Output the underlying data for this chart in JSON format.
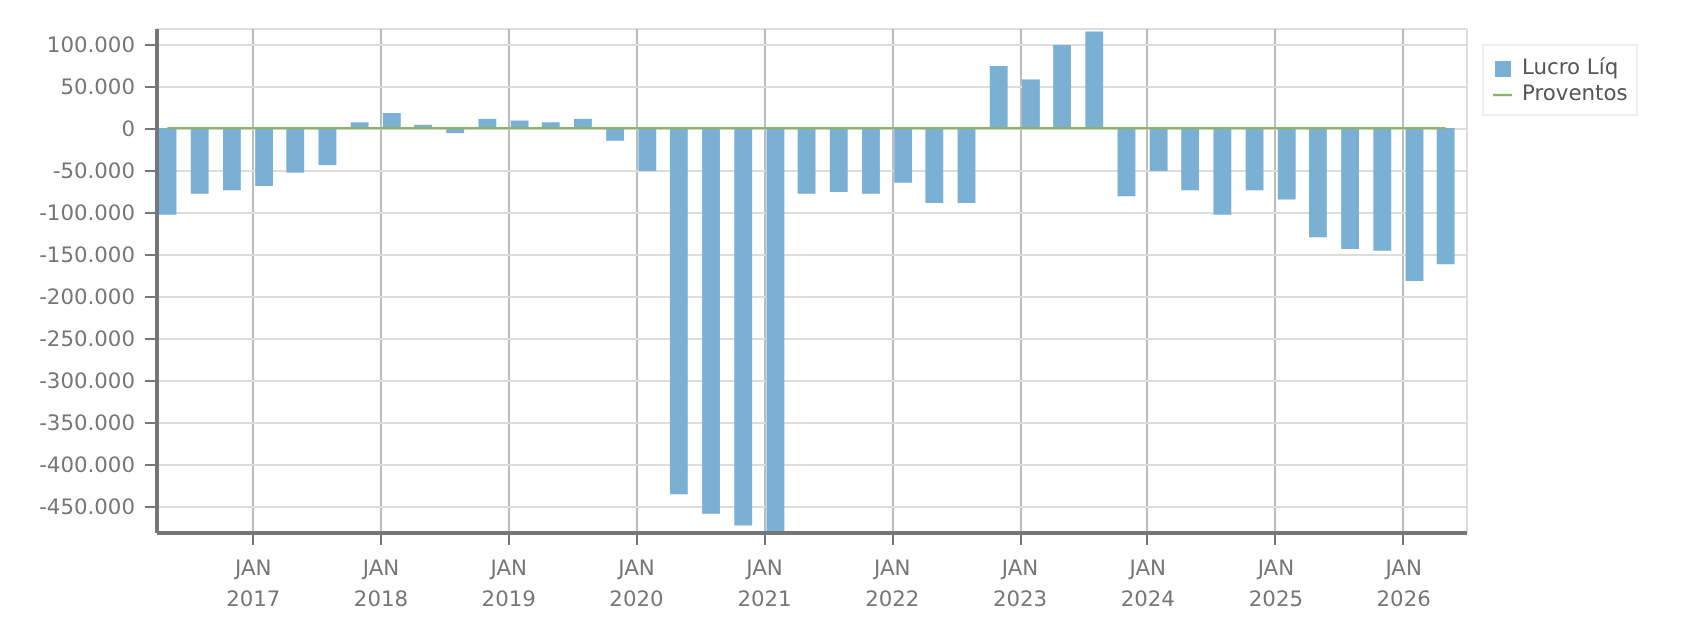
{
  "chart_data": {
    "type": "bar",
    "x": [
      "2016-05",
      "2016-08",
      "2016-11",
      "2017-02",
      "2017-05",
      "2017-08",
      "2017-11",
      "2018-02",
      "2018-05",
      "2018-08",
      "2018-11",
      "2019-02",
      "2019-05",
      "2019-08",
      "2019-11",
      "2020-02",
      "2020-05",
      "2020-08",
      "2020-11",
      "2021-02",
      "2021-05",
      "2021-08",
      "2021-11",
      "2022-02",
      "2022-05",
      "2022-08",
      "2022-11",
      "2023-02",
      "2023-05",
      "2023-08",
      "2023-11",
      "2024-02",
      "2024-05",
      "2024-08",
      "2024-11",
      "2025-02",
      "2025-05",
      "2025-08",
      "2025-11",
      "2026-02",
      "2026-05"
    ],
    "series": [
      {
        "name": "Lucro Líq",
        "color": "#7ab0d4",
        "values": [
          -103000,
          -78000,
          -74000,
          -69000,
          -53000,
          -44000,
          7000,
          18000,
          4000,
          -6000,
          11000,
          9000,
          7000,
          11000,
          -15000,
          -51000,
          -436000,
          -459000,
          -473000,
          -481000,
          -78000,
          -76000,
          -78000,
          -65000,
          -89000,
          -89000,
          74000,
          58000,
          99000,
          115000,
          -81000,
          -51000,
          -74000,
          -103000,
          -74000,
          -85000,
          -130000,
          -144000,
          -146000,
          -182000,
          -162000
        ]
      },
      {
        "name": "Proventos",
        "color": "#8db36a",
        "type": "line",
        "values": [
          0,
          0,
          0,
          0,
          0,
          0,
          0,
          0,
          0,
          0,
          0,
          0,
          0,
          0,
          0,
          0,
          0,
          0,
          0,
          0,
          0,
          0,
          0,
          0,
          0,
          0,
          0,
          0,
          0,
          0,
          0,
          0,
          0,
          0,
          0,
          0,
          0,
          0,
          0,
          0,
          0
        ]
      }
    ],
    "xlim": [
      "2016-04",
      "2026-07"
    ],
    "xticks": [
      {
        "value": "2017-01",
        "label": "JAN\n2017"
      },
      {
        "value": "2018-01",
        "label": "JAN\n2018"
      },
      {
        "value": "2019-01",
        "label": "JAN\n2019"
      },
      {
        "value": "2020-01",
        "label": "JAN\n2020"
      },
      {
        "value": "2021-01",
        "label": "JAN\n2021"
      },
      {
        "value": "2022-01",
        "label": "JAN\n2022"
      },
      {
        "value": "2023-01",
        "label": "JAN\n2023"
      },
      {
        "value": "2024-01",
        "label": "JAN\n2024"
      },
      {
        "value": "2025-01",
        "label": "JAN\n2025"
      },
      {
        "value": "2026-01",
        "label": "JAN\n2026"
      }
    ],
    "ylim": [
      -482000,
      118000
    ],
    "yticks": [
      {
        "value": 100000,
        "label": "100.000"
      },
      {
        "value": 50000,
        "label": "50.000"
      },
      {
        "value": 0,
        "label": "0"
      },
      {
        "value": -50000,
        "label": "-50.000"
      },
      {
        "value": -100000,
        "label": "-100.000"
      },
      {
        "value": -150000,
        "label": "-150.000"
      },
      {
        "value": -200000,
        "label": "-200.000"
      },
      {
        "value": -250000,
        "label": "-250.000"
      },
      {
        "value": -300000,
        "label": "-300.000"
      },
      {
        "value": -350000,
        "label": "-350.000"
      },
      {
        "value": -400000,
        "label": "-400.000"
      },
      {
        "value": -450000,
        "label": "-450.000"
      }
    ],
    "grid": true,
    "legend": "top right"
  }
}
